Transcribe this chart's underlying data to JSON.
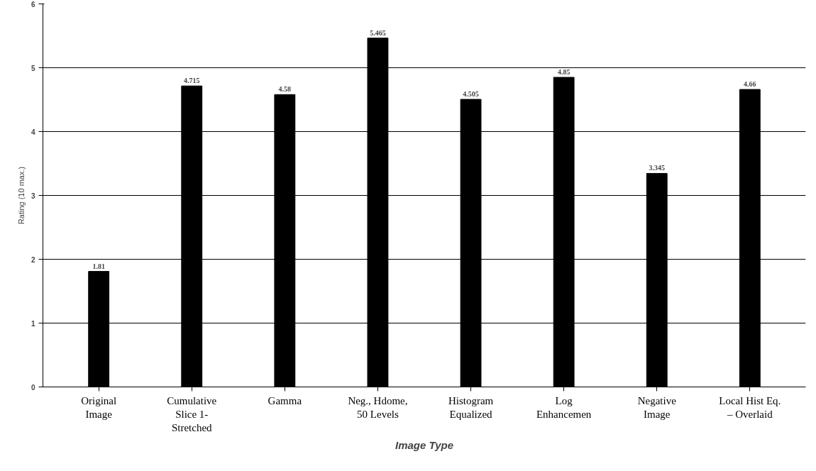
{
  "chart_data": {
    "type": "bar",
    "xlabel": "Image Type",
    "ylabel": "Rating (10 max.)",
    "categories": [
      "Original\nImage",
      "Cumulative\nSlice 1-\nStretched",
      "Gamma",
      "Neg., Hdome,\n50 Levels",
      "Histogram\nEqualized",
      "Log\nEnhancemen",
      "Negative\nImage",
      "Local Hist Eq.\n– Overlaid"
    ],
    "values": [
      1.81,
      4.715,
      4.58,
      5.465,
      4.505,
      4.85,
      3.345,
      4.66
    ],
    "color": "#000000",
    "ylim": [
      0,
      6
    ],
    "yticks": [
      0,
      1,
      2,
      3,
      4,
      5,
      6
    ],
    "grid": "y",
    "data_labels": true
  }
}
